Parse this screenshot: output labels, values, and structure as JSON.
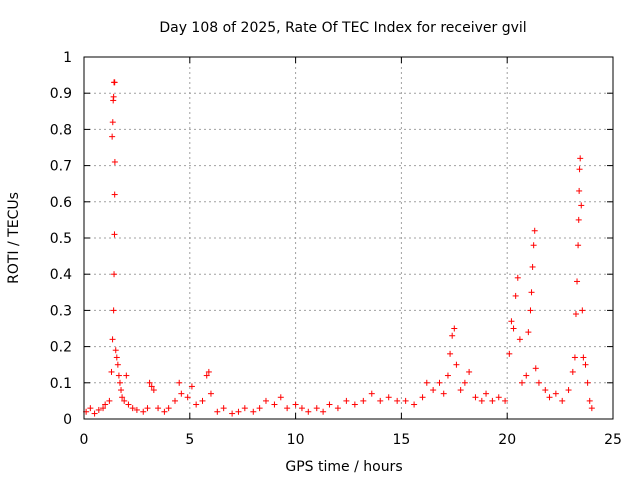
{
  "chart_data": {
    "type": "scatter",
    "title": "Day 108 of 2025, Rate Of TEC Index for receiver gvil",
    "xlabel": "GPS time / hours",
    "ylabel": "ROTI / TECUs",
    "xlim": [
      0,
      25
    ],
    "ylim": [
      0,
      1
    ],
    "x_ticks": [
      0,
      5,
      10,
      15,
      20,
      25
    ],
    "x_tick_labels": [
      "0",
      "5",
      "10",
      "15",
      "20",
      "25"
    ],
    "y_ticks": [
      0,
      0.1,
      0.2,
      0.3,
      0.4,
      0.5,
      0.6,
      0.7,
      0.8,
      0.9,
      1
    ],
    "y_tick_labels": [
      "0",
      "0.1",
      "0.2",
      "0.3",
      "0.4",
      "0.5",
      "0.6",
      "0.7",
      "0.8",
      "0.9",
      "1"
    ],
    "grid": true,
    "marker": "+",
    "color": "#ff0000",
    "series": [
      {
        "name": "ROTI",
        "points": [
          [
            0.1,
            0.02
          ],
          [
            0.3,
            0.03
          ],
          [
            0.5,
            0.015
          ],
          [
            0.7,
            0.025
          ],
          [
            0.9,
            0.03
          ],
          [
            1.0,
            0.04
          ],
          [
            1.2,
            0.05
          ],
          [
            1.3,
            0.13
          ],
          [
            1.35,
            0.22
          ],
          [
            1.4,
            0.3
          ],
          [
            1.42,
            0.4
          ],
          [
            1.44,
            0.51
          ],
          [
            1.45,
            0.62
          ],
          [
            1.46,
            0.71
          ],
          [
            1.33,
            0.78
          ],
          [
            1.36,
            0.82
          ],
          [
            1.38,
            0.88
          ],
          [
            1.4,
            0.89
          ],
          [
            1.42,
            0.93
          ],
          [
            1.45,
            0.93
          ],
          [
            1.5,
            0.19
          ],
          [
            1.55,
            0.17
          ],
          [
            1.6,
            0.15
          ],
          [
            1.65,
            0.12
          ],
          [
            1.7,
            0.1
          ],
          [
            1.75,
            0.08
          ],
          [
            1.8,
            0.06
          ],
          [
            1.9,
            0.05
          ],
          [
            2.0,
            0.12
          ],
          [
            2.1,
            0.04
          ],
          [
            2.3,
            0.03
          ],
          [
            2.5,
            0.025
          ],
          [
            2.8,
            0.02
          ],
          [
            3.0,
            0.03
          ],
          [
            3.1,
            0.1
          ],
          [
            3.2,
            0.09
          ],
          [
            3.3,
            0.08
          ],
          [
            3.5,
            0.03
          ],
          [
            3.8,
            0.02
          ],
          [
            4.0,
            0.03
          ],
          [
            4.3,
            0.05
          ],
          [
            4.5,
            0.1
          ],
          [
            4.6,
            0.07
          ],
          [
            4.9,
            0.06
          ],
          [
            5.1,
            0.09
          ],
          [
            5.3,
            0.04
          ],
          [
            5.6,
            0.05
          ],
          [
            5.8,
            0.12
          ],
          [
            5.9,
            0.13
          ],
          [
            6.0,
            0.07
          ],
          [
            6.3,
            0.02
          ],
          [
            6.6,
            0.03
          ],
          [
            7.0,
            0.015
          ],
          [
            7.3,
            0.02
          ],
          [
            7.6,
            0.03
          ],
          [
            8.0,
            0.02
          ],
          [
            8.3,
            0.03
          ],
          [
            8.6,
            0.05
          ],
          [
            9.0,
            0.04
          ],
          [
            9.3,
            0.06
          ],
          [
            9.6,
            0.03
          ],
          [
            10.0,
            0.04
          ],
          [
            10.3,
            0.03
          ],
          [
            10.6,
            0.02
          ],
          [
            11.0,
            0.03
          ],
          [
            11.3,
            0.02
          ],
          [
            11.6,
            0.04
          ],
          [
            12.0,
            0.03
          ],
          [
            12.4,
            0.05
          ],
          [
            12.8,
            0.04
          ],
          [
            13.2,
            0.05
          ],
          [
            13.6,
            0.07
          ],
          [
            14.0,
            0.05
          ],
          [
            14.4,
            0.06
          ],
          [
            14.8,
            0.05
          ],
          [
            15.2,
            0.05
          ],
          [
            15.6,
            0.04
          ],
          [
            16.0,
            0.06
          ],
          [
            16.2,
            0.1
          ],
          [
            16.5,
            0.08
          ],
          [
            16.8,
            0.1
          ],
          [
            17.0,
            0.07
          ],
          [
            17.2,
            0.12
          ],
          [
            17.3,
            0.18
          ],
          [
            17.4,
            0.23
          ],
          [
            17.5,
            0.25
          ],
          [
            17.6,
            0.15
          ],
          [
            17.8,
            0.08
          ],
          [
            18.0,
            0.1
          ],
          [
            18.2,
            0.13
          ],
          [
            18.5,
            0.06
          ],
          [
            18.8,
            0.05
          ],
          [
            19.0,
            0.07
          ],
          [
            19.3,
            0.05
          ],
          [
            19.6,
            0.06
          ],
          [
            19.9,
            0.05
          ],
          [
            20.1,
            0.18
          ],
          [
            20.2,
            0.27
          ],
          [
            20.3,
            0.25
          ],
          [
            20.4,
            0.34
          ],
          [
            20.5,
            0.39
          ],
          [
            20.6,
            0.22
          ],
          [
            20.7,
            0.1
          ],
          [
            20.9,
            0.12
          ],
          [
            21.0,
            0.24
          ],
          [
            21.1,
            0.3
          ],
          [
            21.15,
            0.35
          ],
          [
            21.2,
            0.42
          ],
          [
            21.25,
            0.48
          ],
          [
            21.3,
            0.52
          ],
          [
            21.35,
            0.14
          ],
          [
            21.5,
            0.1
          ],
          [
            21.8,
            0.08
          ],
          [
            22.0,
            0.06
          ],
          [
            22.3,
            0.07
          ],
          [
            22.6,
            0.05
          ],
          [
            22.9,
            0.08
          ],
          [
            23.1,
            0.13
          ],
          [
            23.2,
            0.17
          ],
          [
            23.25,
            0.29
          ],
          [
            23.3,
            0.38
          ],
          [
            23.35,
            0.48
          ],
          [
            23.38,
            0.55
          ],
          [
            23.4,
            0.63
          ],
          [
            23.42,
            0.69
          ],
          [
            23.45,
            0.72
          ],
          [
            23.5,
            0.59
          ],
          [
            23.55,
            0.3
          ],
          [
            23.6,
            0.17
          ],
          [
            23.7,
            0.15
          ],
          [
            23.8,
            0.1
          ],
          [
            23.9,
            0.05
          ],
          [
            24.0,
            0.03
          ]
        ]
      }
    ]
  }
}
